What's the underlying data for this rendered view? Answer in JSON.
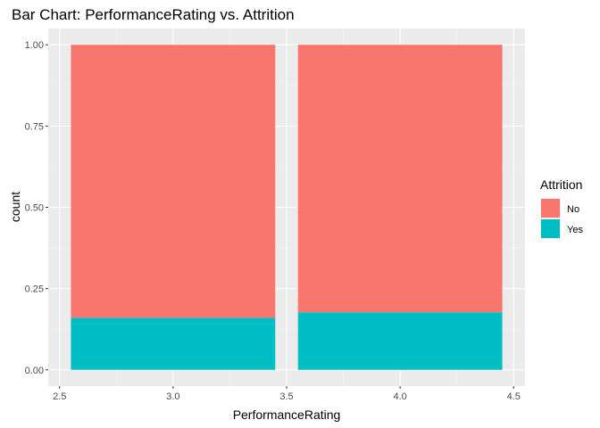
{
  "chart_data": {
    "type": "bar",
    "stacked": true,
    "title": "Bar Chart: PerformanceRating vs. Attrition",
    "xlabel": "PerformanceRating",
    "ylabel": "count",
    "x": [
      3.0,
      4.0
    ],
    "bar_width": 0.9,
    "xlim": [
      2.45,
      4.55
    ],
    "ylim": [
      -0.05,
      1.05
    ],
    "x_ticks": [
      2.5,
      3.0,
      3.5,
      4.0,
      4.5
    ],
    "x_tick_labels": [
      "2.5",
      "3.0",
      "3.5",
      "4.0",
      "4.5"
    ],
    "y_ticks": [
      0.0,
      0.25,
      0.5,
      0.75,
      1.0
    ],
    "y_tick_labels": [
      "0.00",
      "0.25",
      "0.50",
      "0.75",
      "1.00"
    ],
    "series": [
      {
        "name": "Yes",
        "values": [
          0.16,
          0.177
        ],
        "color": "#00BFC4"
      },
      {
        "name": "No",
        "values": [
          0.84,
          0.823
        ],
        "color": "#F8766D"
      }
    ],
    "legend": {
      "title": "Attrition",
      "placement": "right",
      "entries": [
        {
          "label": "No",
          "color": "#F8766D"
        },
        {
          "label": "Yes",
          "color": "#00BFC4"
        }
      ]
    },
    "grid": true,
    "panel_background": "#EBEBEB",
    "grid_major_color": "#FFFFFF"
  }
}
